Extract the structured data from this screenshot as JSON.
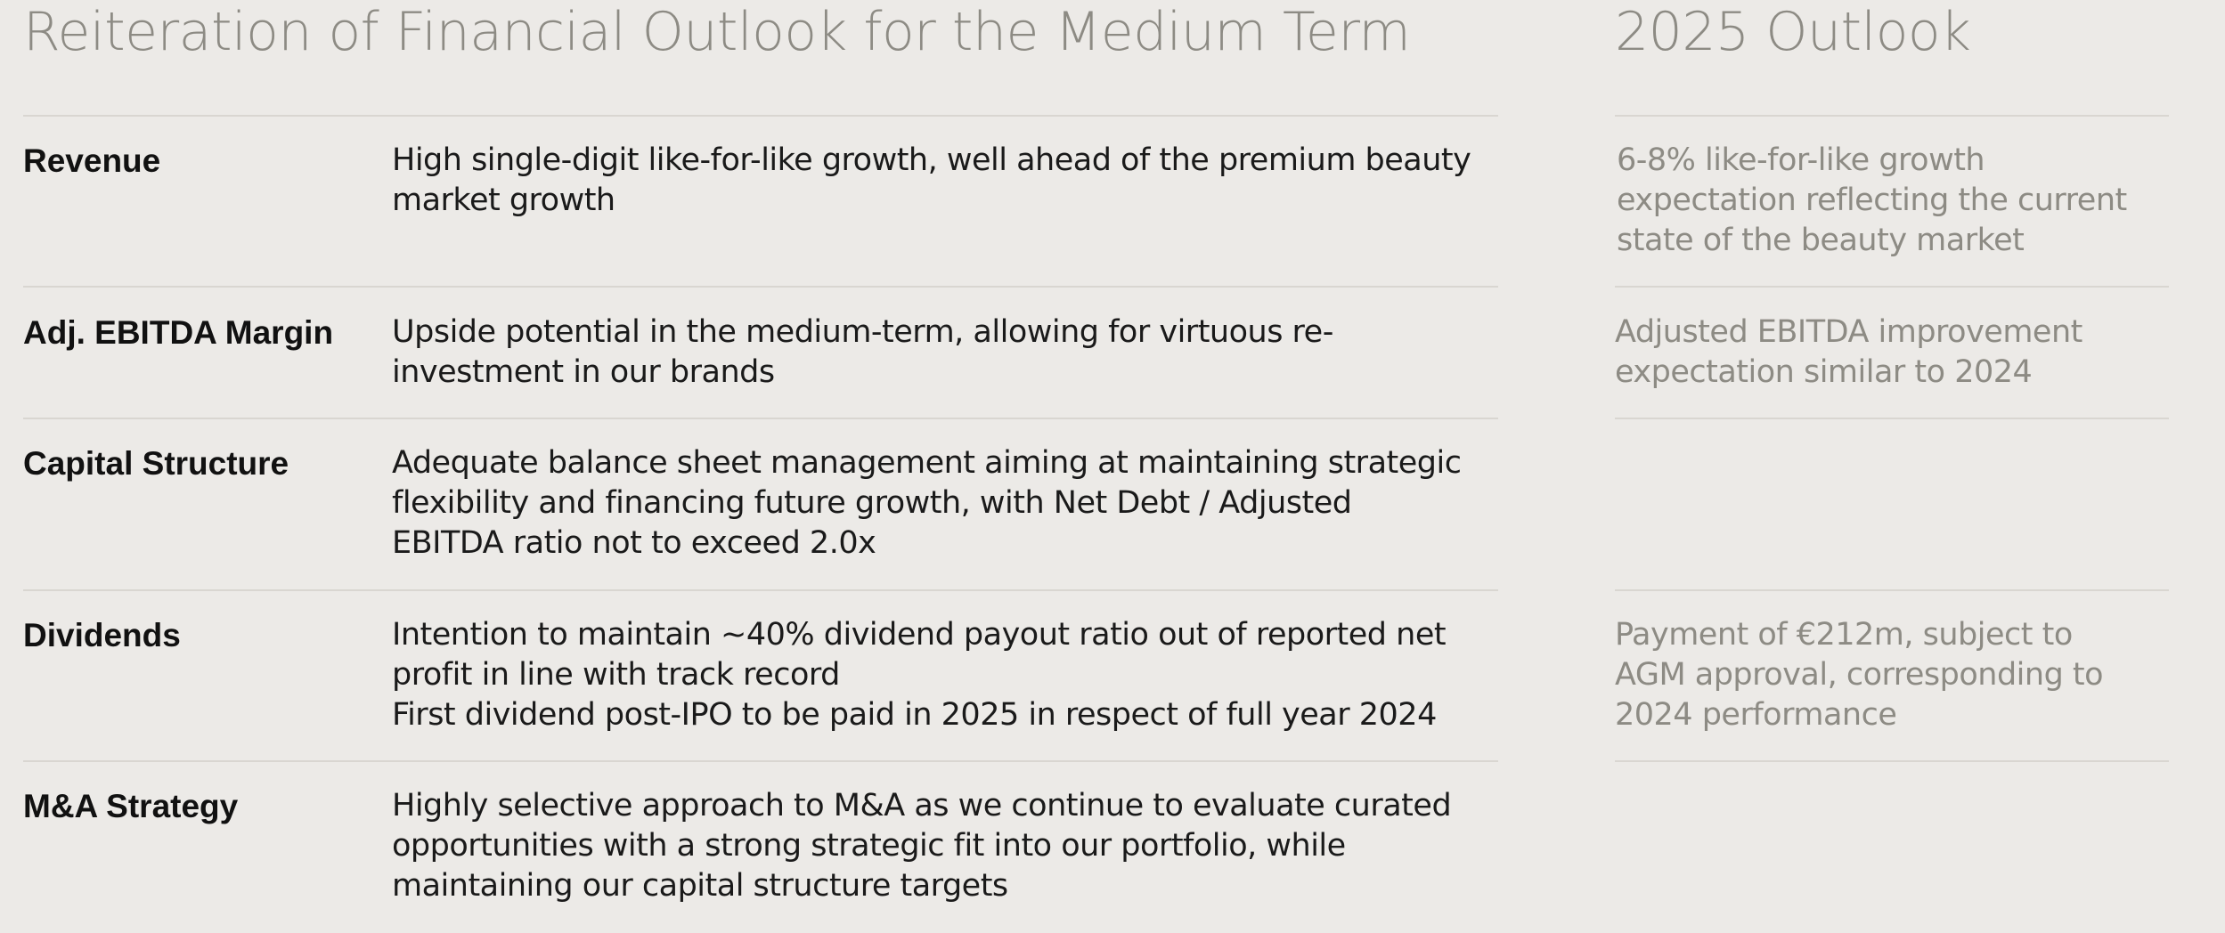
{
  "header": {
    "left_title": "Reiteration of Financial Outlook for the Medium Term",
    "right_title": "2025 Outlook"
  },
  "rows": [
    {
      "label": "Revenue",
      "description": [
        "High single-digit like-for-like growth, well ahead of the premium beauty",
        "market growth"
      ],
      "outlook": [
        "6-8% like-for-like growth",
        "expectation reflecting the current",
        "state of the beauty market"
      ]
    },
    {
      "label": "Adj. EBITDA Margin",
      "description": [
        "Upside potential in the medium-term, allowing for virtuous re-",
        "investment in our brands"
      ],
      "outlook": [
        "Adjusted EBITDA improvement",
        "expectation similar to 2024"
      ]
    },
    {
      "label": "Capital Structure",
      "description": [
        "Adequate balance sheet management aiming at maintaining strategic",
        "flexibility and financing future growth, with Net Debt / Adjusted",
        "EBITDA ratio not to exceed 2.0x"
      ],
      "outlook": []
    },
    {
      "label": "Dividends",
      "description": [
        "Intention to maintain ~40% dividend payout ratio out of reported net",
        "profit in line with track record",
        "First dividend post-IPO to be paid in 2025 in respect of full year 2024"
      ],
      "outlook": [
        "Payment of €212m, subject to",
        "AGM approval, corresponding to",
        "2024 performance"
      ]
    },
    {
      "label": "M&A Strategy",
      "description": [
        "Highly selective approach to M&A as we continue to evaluate curated",
        "opportunities with a strong strategic fit into our portfolio, while",
        "maintaining our capital structure targets"
      ],
      "outlook": []
    }
  ]
}
